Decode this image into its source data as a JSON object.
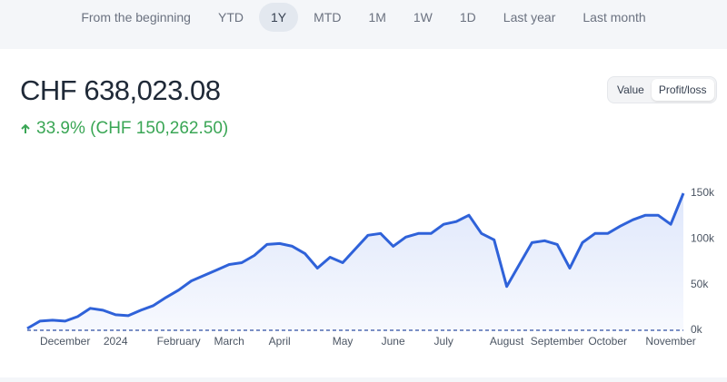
{
  "tabs": [
    "From the beginning",
    "YTD",
    "1Y",
    "MTD",
    "1M",
    "1W",
    "1D",
    "Last year",
    "Last month"
  ],
  "summary": {
    "value": "CHF 638,023.08",
    "change": "33.9% (CHF 150,262.50)"
  },
  "toggle": [
    "Value",
    "Profit/loss"
  ],
  "chart_data": {
    "type": "line",
    "color": "#2f62d9",
    "categories": [
      null,
      null,
      null,
      "December",
      null,
      null,
      null,
      "2024",
      null,
      null,
      null,
      null,
      "February",
      null,
      null,
      null,
      "March",
      null,
      null,
      null,
      "April",
      null,
      null,
      null,
      null,
      "May",
      null,
      null,
      null,
      "June",
      null,
      null,
      null,
      "July",
      null,
      null,
      null,
      null,
      "August",
      null,
      null,
      null,
      "September",
      null,
      null,
      null,
      "October",
      null,
      null,
      null,
      null,
      "November",
      null
    ],
    "values": [
      2000,
      10000,
      11000,
      10000,
      15000,
      24000,
      22000,
      17000,
      16000,
      22000,
      27000,
      36000,
      44000,
      54000,
      60000,
      66000,
      72000,
      74000,
      82000,
      94000,
      95000,
      92000,
      84000,
      68000,
      80000,
      74000,
      89000,
      104000,
      106000,
      92000,
      102000,
      106000,
      106000,
      116000,
      119000,
      126000,
      106000,
      99000,
      48000,
      72000,
      96000,
      98000,
      94000,
      68000,
      96000,
      106000,
      106000,
      114000,
      121000,
      126000,
      126000,
      116000,
      150000
    ],
    "ylim": [
      0,
      150000
    ],
    "yticks": [
      {
        "value": 0,
        "label": "0k"
      },
      {
        "value": 50000,
        "label": "50k"
      },
      {
        "value": 100000,
        "label": "100k"
      },
      {
        "value": 150000,
        "label": "150k"
      }
    ]
  }
}
